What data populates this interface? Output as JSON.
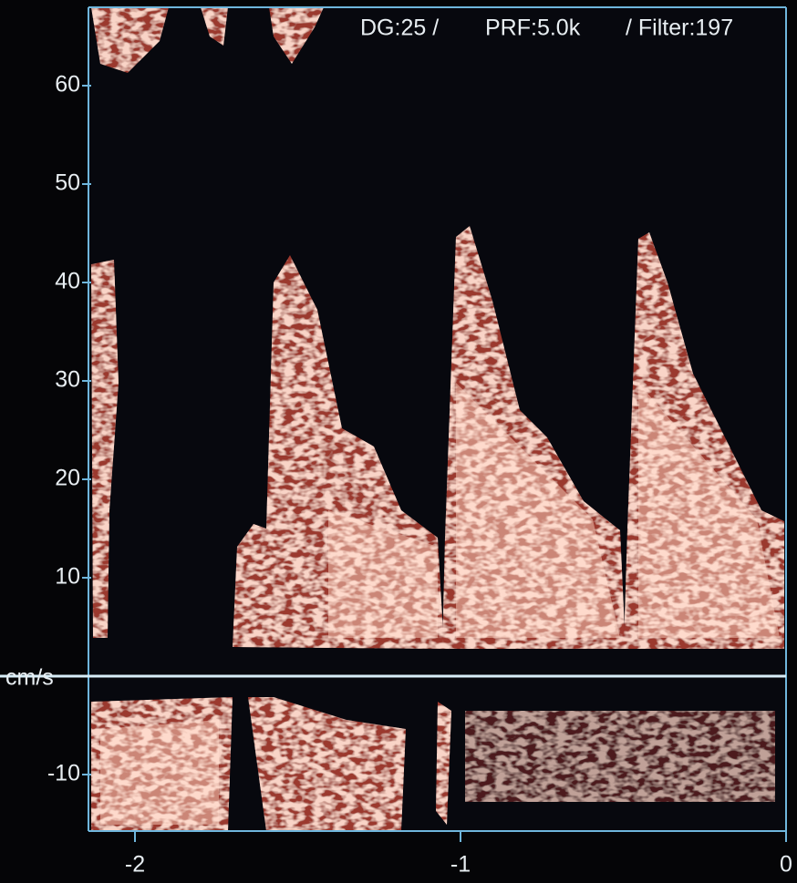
{
  "header": {
    "gain": "DG:25 /",
    "prf": "PRF:5.0k",
    "filter": "/ Filter:197"
  },
  "y_axis": {
    "unit": "cm/s",
    "ticks": [
      60,
      50,
      40,
      30,
      20,
      10,
      -10
    ]
  },
  "x_axis": {
    "ticks": [
      -2,
      -1,
      0
    ]
  }
}
